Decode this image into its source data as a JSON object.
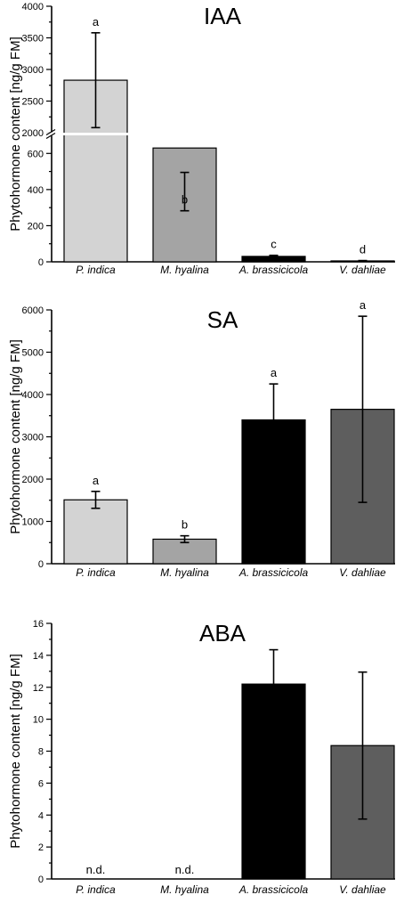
{
  "chart_data": [
    {
      "type": "bar",
      "title": "IAA",
      "ylabel": "Phytohormone content [ng/g FM]",
      "categories": [
        "P. indica",
        "M. hyalina",
        "A. brassicicola",
        "V. dahliae"
      ],
      "values": [
        2830,
        630,
        30,
        5
      ],
      "errors": [
        750,
        135,
        6,
        2
      ],
      "significance": [
        "a",
        "b",
        "c",
        "d"
      ],
      "colors": [
        "#d3d3d3",
        "#a4a4a4",
        "#000000",
        "#5e5e5e"
      ],
      "broken_axis": true,
      "segments": [
        {
          "range": [
            0,
            700
          ],
          "ticks": [
            0,
            200,
            400,
            600
          ],
          "tick_labels": [
            "0",
            "200",
            "400",
            "600"
          ]
        },
        {
          "range": [
            2000,
            4000
          ],
          "ticks": [
            2000,
            2500,
            3000,
            3500,
            4000
          ],
          "tick_labels": [
            "2000",
            "2500",
            "3000",
            "3500",
            "4000"
          ]
        }
      ],
      "grid": false
    },
    {
      "type": "bar",
      "title": "SA",
      "ylabel": "Phytohormone content [ng/g FM]",
      "categories": [
        "P. indica",
        "M. hyalina",
        "A. brassicicola",
        "V. dahliae"
      ],
      "values": [
        1510,
        580,
        3400,
        3650
      ],
      "errors": [
        200,
        80,
        850,
        2200
      ],
      "significance": [
        "a",
        "b",
        "a",
        "a"
      ],
      "colors": [
        "#d3d3d3",
        "#a4a4a4",
        "#000000",
        "#5e5e5e"
      ],
      "ylim": [
        0,
        6000
      ],
      "yticks": [
        0,
        1000,
        2000,
        3000,
        4000,
        5000,
        6000
      ],
      "ytick_labels": [
        "0",
        "1000",
        "2000",
        "3000",
        "4000",
        "5000",
        "6000"
      ],
      "grid": false
    },
    {
      "type": "bar",
      "title": "ABA",
      "ylabel": "Phytohormone content [ng/g FM]",
      "categories": [
        "P. indica",
        "M. hyalina",
        "A. brassicicola",
        "V. dahliae"
      ],
      "values": [
        null,
        null,
        12.2,
        8.35
      ],
      "errors": [
        null,
        null,
        2.15,
        4.6
      ],
      "bar_labels": [
        "n.d.",
        "n.d.",
        "",
        ""
      ],
      "colors": [
        "#d3d3d3",
        "#a4a4a4",
        "#000000",
        "#5e5e5e"
      ],
      "ylim": [
        0,
        16
      ],
      "yticks": [
        0,
        2,
        4,
        6,
        8,
        10,
        12,
        14,
        16
      ],
      "ytick_labels": [
        "0",
        "2",
        "4",
        "6",
        "8",
        "10",
        "12",
        "14",
        "16"
      ],
      "grid": false
    }
  ]
}
